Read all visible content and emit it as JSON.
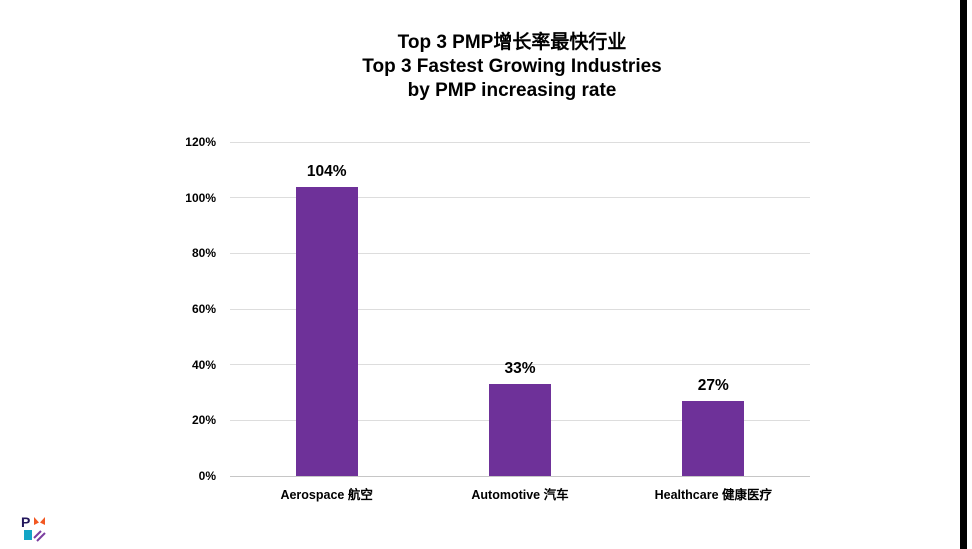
{
  "chart_data": {
    "type": "bar",
    "title": "Top 3 PMP增长率最快行业",
    "subtitle_lines": [
      "Top 3 Fastest Growing Industries",
      "by PMP increasing rate"
    ],
    "categories": [
      "Aerospace 航空",
      "Automotive 汽车",
      "Healthcare 健康医疗"
    ],
    "values": [
      104,
      33,
      27
    ],
    "value_labels": [
      "104%",
      "33%",
      "27%"
    ],
    "unit": "%",
    "ylim": [
      0,
      120
    ],
    "ytick_step": 20,
    "ytick_labels": [
      "0%",
      "20%",
      "40%",
      "60%",
      "80%",
      "100%",
      "120%"
    ],
    "grid": true,
    "legend": "none",
    "bar_color": "#6E3199",
    "gridline_color": "#DDDDDD",
    "axis_line_color": "#C6C6C6",
    "text_color": "#000000"
  },
  "footer": {
    "logo_name": "PMI"
  },
  "page": {
    "background": "#ffffff",
    "right_edge_color": "#000000"
  }
}
